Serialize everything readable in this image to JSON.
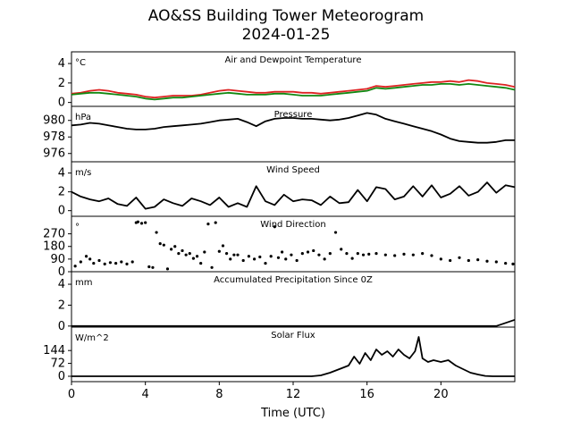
{
  "title": "AO&SS Building Tower Meteorogram",
  "subtitle": "2024-01-25",
  "xlabel": "Time (UTC)",
  "x_ticks": [
    0,
    4,
    8,
    12,
    16,
    20
  ],
  "colors": {
    "temperature": "#dd2222",
    "dewpoint": "#118811",
    "line": "#000000"
  },
  "chart_data": [
    {
      "type": "line",
      "title": "Air and Dewpoint Temperature",
      "unit": "°C",
      "yticks": [
        0,
        2,
        4
      ],
      "ylim": [
        -0.4,
        5.2
      ],
      "xlim": [
        0,
        24
      ],
      "series": [
        {
          "key": "temperature",
          "color": "#dd2222",
          "style": "line",
          "x": [
            0,
            0.5,
            1,
            1.5,
            2,
            2.5,
            3,
            3.5,
            4,
            4.5,
            5,
            5.5,
            6,
            6.5,
            7,
            7.5,
            8,
            8.5,
            9,
            9.5,
            10,
            10.5,
            11,
            11.5,
            12,
            12.5,
            13,
            13.5,
            14,
            14.5,
            15,
            15.5,
            16,
            16.5,
            17,
            17.5,
            18,
            18.5,
            19,
            19.5,
            20,
            20.5,
            21,
            21.5,
            22,
            22.5,
            23,
            23.5,
            24
          ],
          "values": [
            0.9,
            1.0,
            1.2,
            1.3,
            1.2,
            1.0,
            0.9,
            0.8,
            0.6,
            0.5,
            0.6,
            0.7,
            0.7,
            0.7,
            0.8,
            1.0,
            1.2,
            1.3,
            1.2,
            1.1,
            1.0,
            1.0,
            1.1,
            1.1,
            1.1,
            1.0,
            1.0,
            0.9,
            1.0,
            1.1,
            1.2,
            1.3,
            1.4,
            1.7,
            1.6,
            1.7,
            1.8,
            1.9,
            2.0,
            2.1,
            2.1,
            2.2,
            2.1,
            2.3,
            2.2,
            2.0,
            1.9,
            1.8,
            1.6
          ]
        },
        {
          "key": "dewpoint",
          "color": "#118811",
          "style": "line",
          "x": [
            0,
            0.5,
            1,
            1.5,
            2,
            2.5,
            3,
            3.5,
            4,
            4.5,
            5,
            5.5,
            6,
            6.5,
            7,
            7.5,
            8,
            8.5,
            9,
            9.5,
            10,
            10.5,
            11,
            11.5,
            12,
            12.5,
            13,
            13.5,
            14,
            14.5,
            15,
            15.5,
            16,
            16.5,
            17,
            17.5,
            18,
            18.5,
            19,
            19.5,
            20,
            20.5,
            21,
            21.5,
            22,
            22.5,
            23,
            23.5,
            24
          ],
          "values": [
            0.8,
            0.9,
            1.0,
            1.0,
            0.9,
            0.8,
            0.7,
            0.6,
            0.4,
            0.3,
            0.4,
            0.5,
            0.5,
            0.6,
            0.7,
            0.8,
            0.9,
            1.0,
            0.9,
            0.8,
            0.8,
            0.8,
            0.9,
            0.9,
            0.8,
            0.7,
            0.7,
            0.7,
            0.8,
            0.9,
            1.0,
            1.1,
            1.2,
            1.5,
            1.4,
            1.5,
            1.6,
            1.7,
            1.8,
            1.8,
            1.9,
            1.9,
            1.8,
            1.9,
            1.8,
            1.7,
            1.6,
            1.5,
            1.3
          ]
        }
      ]
    },
    {
      "type": "line",
      "title": "Pressure",
      "unit": "hPa",
      "yticks": [
        976,
        978,
        980
      ],
      "ylim": [
        975.0,
        981.7
      ],
      "xlim": [
        0,
        24
      ],
      "series": [
        {
          "key": "line",
          "color": "#000000",
          "style": "line",
          "x": [
            0,
            0.5,
            1,
            1.5,
            2,
            2.5,
            3,
            3.5,
            4,
            4.5,
            5,
            5.5,
            6,
            6.5,
            7,
            7.5,
            8,
            8.5,
            9,
            9.5,
            10,
            10.5,
            11,
            11.5,
            12,
            12.5,
            13,
            13.5,
            14,
            14.5,
            15,
            15.5,
            16,
            16.5,
            17,
            17.5,
            18,
            18.5,
            19,
            19.5,
            20,
            20.5,
            21,
            21.5,
            22,
            22.5,
            23,
            23.5,
            24
          ],
          "values": [
            979.4,
            979.5,
            979.7,
            979.6,
            979.4,
            979.2,
            979.0,
            978.9,
            978.9,
            979.0,
            979.2,
            979.3,
            979.4,
            979.5,
            979.6,
            979.8,
            980.0,
            980.1,
            980.2,
            979.8,
            979.3,
            979.9,
            980.2,
            980.3,
            980.3,
            980.2,
            980.2,
            980.1,
            980.0,
            980.1,
            980.3,
            980.6,
            980.9,
            980.7,
            980.2,
            979.9,
            979.6,
            979.3,
            979.0,
            978.7,
            978.3,
            977.8,
            977.5,
            977.4,
            977.3,
            977.3,
            977.4,
            977.6,
            977.6
          ]
        }
      ]
    },
    {
      "type": "line",
      "title": "Wind Speed",
      "unit": "m/s",
      "yticks": [
        0,
        2,
        4
      ],
      "ylim": [
        -0.6,
        5.2
      ],
      "xlim": [
        0,
        24
      ],
      "series": [
        {
          "key": "line",
          "color": "#000000",
          "style": "line",
          "x": [
            0,
            0.5,
            1,
            1.5,
            2,
            2.5,
            3,
            3.5,
            4,
            4.5,
            5,
            5.5,
            6,
            6.5,
            7,
            7.5,
            8,
            8.5,
            9,
            9.5,
            10,
            10.5,
            11,
            11.5,
            12,
            12.5,
            13,
            13.5,
            14,
            14.5,
            15,
            15.5,
            16,
            16.5,
            17,
            17.5,
            18,
            18.5,
            19,
            19.5,
            20,
            20.5,
            21,
            21.5,
            22,
            22.5,
            23,
            23.5,
            24
          ],
          "values": [
            2.0,
            1.5,
            1.2,
            1.0,
            1.3,
            0.7,
            0.5,
            1.4,
            0.2,
            0.4,
            1.2,
            0.8,
            0.5,
            1.3,
            1.0,
            0.6,
            1.4,
            0.4,
            0.8,
            0.4,
            2.6,
            1.0,
            0.6,
            1.7,
            1.0,
            1.2,
            1.1,
            0.6,
            1.5,
            0.8,
            0.9,
            2.2,
            1.0,
            2.5,
            2.3,
            1.2,
            1.5,
            2.6,
            1.5,
            2.7,
            1.4,
            1.8,
            2.6,
            1.6,
            2.0,
            3.0,
            1.9,
            2.7,
            2.5
          ]
        }
      ]
    },
    {
      "type": "scatter",
      "title": "Wind Direction",
      "unit": "°",
      "yticks": [
        0,
        90,
        180,
        270
      ],
      "ylim": [
        0,
        395
      ],
      "xlim": [
        0,
        24
      ],
      "series": [
        {
          "key": "line",
          "color": "#000000",
          "style": "dots",
          "x": [
            0.2,
            0.5,
            0.8,
            1.0,
            1.2,
            1.5,
            1.8,
            2.1,
            2.4,
            2.7,
            3.0,
            3.3,
            3.5,
            3.6,
            3.8,
            4.0,
            4.2,
            4.4,
            4.6,
            4.8,
            5.0,
            5.2,
            5.4,
            5.6,
            5.8,
            6.0,
            6.2,
            6.4,
            6.6,
            6.8,
            7.0,
            7.2,
            7.4,
            7.6,
            7.8,
            8.0,
            8.2,
            8.4,
            8.6,
            8.8,
            9.0,
            9.3,
            9.6,
            9.9,
            10.2,
            10.5,
            10.8,
            11.0,
            11.2,
            11.4,
            11.6,
            11.9,
            12.2,
            12.5,
            12.8,
            13.1,
            13.4,
            13.7,
            14.0,
            14.3,
            14.6,
            14.9,
            15.2,
            15.5,
            15.8,
            16.1,
            16.5,
            17.0,
            17.5,
            18.0,
            18.5,
            19.0,
            19.5,
            20.0,
            20.5,
            21.0,
            21.5,
            22.0,
            22.5,
            23.0,
            23.5,
            23.9
          ],
          "values": [
            40,
            70,
            110,
            90,
            60,
            80,
            55,
            65,
            60,
            70,
            55,
            70,
            350,
            355,
            345,
            350,
            35,
            30,
            280,
            200,
            190,
            20,
            160,
            180,
            130,
            150,
            120,
            130,
            95,
            110,
            60,
            140,
            340,
            30,
            350,
            145,
            185,
            130,
            90,
            120,
            120,
            80,
            110,
            90,
            105,
            60,
            110,
            320,
            100,
            140,
            90,
            120,
            80,
            130,
            140,
            150,
            120,
            90,
            130,
            280,
            160,
            130,
            95,
            130,
            120,
            125,
            130,
            120,
            115,
            125,
            120,
            130,
            115,
            90,
            80,
            100,
            80,
            85,
            75,
            70,
            60,
            55
          ]
        }
      ]
    },
    {
      "type": "line",
      "title": "Accumulated Precipitation Since 0Z",
      "unit": "mm",
      "yticks": [
        0,
        2,
        4
      ],
      "ylim": [
        -0.1,
        5.2
      ],
      "xlim": [
        0,
        24
      ],
      "series": [
        {
          "key": "line",
          "color": "#000000",
          "style": "line",
          "x": [
            0,
            23.0,
            23.5,
            24
          ],
          "values": [
            0,
            0,
            0.3,
            0.6
          ]
        }
      ]
    },
    {
      "type": "line",
      "title": "Solar Flux",
      "unit": "W/m^2",
      "yticks": [
        0,
        72,
        144
      ],
      "ylim": [
        -30,
        275
      ],
      "xlim": [
        0,
        24
      ],
      "series": [
        {
          "key": "line",
          "color": "#000000",
          "style": "line",
          "x": [
            0,
            13.0,
            13.5,
            14.0,
            14.5,
            15.0,
            15.3,
            15.6,
            15.9,
            16.2,
            16.5,
            16.8,
            17.1,
            17.4,
            17.7,
            18.0,
            18.3,
            18.6,
            18.8,
            19.0,
            19.3,
            19.6,
            20.0,
            20.4,
            20.8,
            21.2,
            21.6,
            22.0,
            22.4,
            22.8,
            23.2,
            24
          ],
          "values": [
            0,
            0,
            5,
            20,
            40,
            60,
            110,
            70,
            130,
            90,
            150,
            120,
            140,
            110,
            150,
            120,
            100,
            140,
            220,
            100,
            80,
            90,
            80,
            90,
            60,
            40,
            20,
            10,
            2,
            0,
            0,
            0
          ]
        }
      ]
    }
  ]
}
